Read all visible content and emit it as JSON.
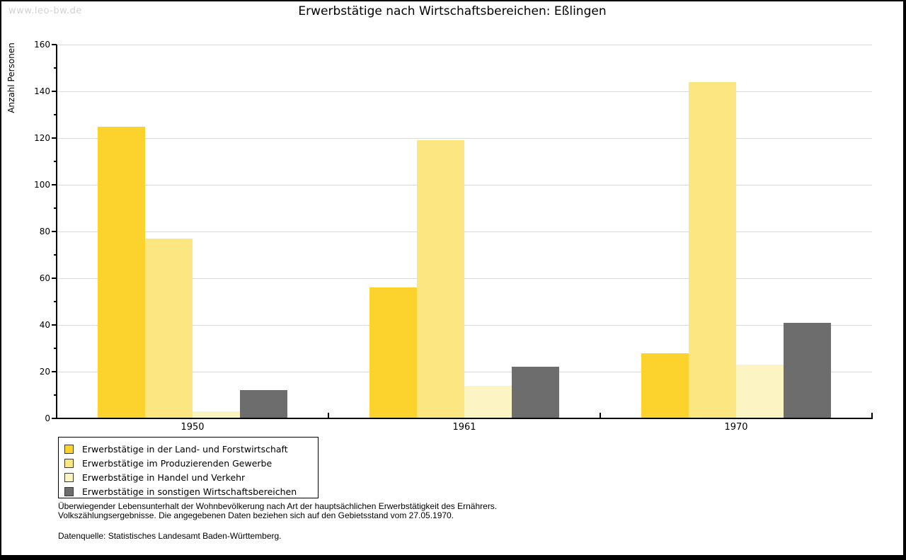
{
  "page": {
    "watermark": "www.leo-bw.de",
    "title": "Erwerbstätige nach Wirtschaftsbereichen: Eßlingen"
  },
  "chart_data": {
    "type": "bar",
    "title": "Erwerbstätige nach Wirtschaftsbereichen: Eßlingen",
    "xlabel": "",
    "ylabel": "Anzahl Personen",
    "ylim": [
      0,
      160
    ],
    "ytick_step": 20,
    "yminor_step": 10,
    "grid": true,
    "legend_position": "bottom-left",
    "categories": [
      "1950",
      "1961",
      "1970"
    ],
    "series": [
      {
        "name": "Erwerbstätige in der Land- und Forstwirtschaft",
        "color": "#fcd32c",
        "values": [
          125,
          56,
          28
        ]
      },
      {
        "name": "Erwerbstätige im Produzierenden Gewerbe",
        "color": "#fbe682",
        "values": [
          77,
          119,
          144
        ]
      },
      {
        "name": "Erwerbstätige in Handel und Verkehr",
        "color": "#fcf4c3",
        "values": [
          3,
          14,
          23
        ]
      },
      {
        "name": "Erwerbstätige in sonstigen Wirtschaftsbereichen",
        "color": "#6d6d6d",
        "values": [
          12,
          22,
          41
        ]
      }
    ]
  },
  "footnotes": {
    "line1": "Überwiegender Lebensunterhalt der Wohnbevölkerung nach Art der hauptsächlichen Erwerbstätigkeit des Ernährers.",
    "line2": "Volkszählungsergebnisse. Die angegebenen Daten beziehen sich auf den Gebietsstand vom 27.05.1970.",
    "source": "Datenquelle: Statistisches Landesamt Baden-Württemberg."
  }
}
